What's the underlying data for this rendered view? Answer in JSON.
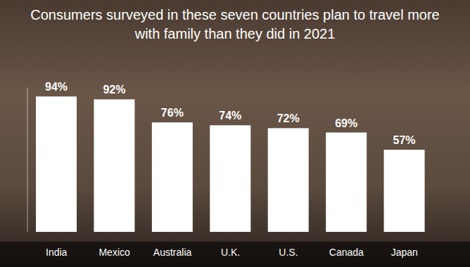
{
  "chart_data": {
    "type": "bar",
    "title": "Consumers surveyed in these seven countries plan to travel more with family than they did in 2021",
    "categories": [
      "India",
      "Mexico",
      "Australia",
      "U.K.",
      "U.S.",
      "Canada",
      "Japan"
    ],
    "values": [
      94,
      92,
      76,
      74,
      72,
      69,
      57
    ],
    "value_labels": [
      "94%",
      "92%",
      "76%",
      "74%",
      "72%",
      "69%",
      "57%"
    ],
    "color": "#ffffff",
    "ylim": [
      0,
      100
    ],
    "data_labels": true,
    "tick_labels": "x",
    "grid": false
  }
}
